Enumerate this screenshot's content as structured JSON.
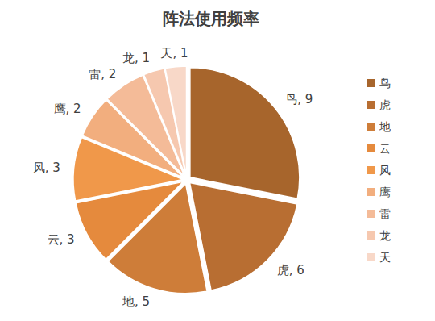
{
  "chart_data": {
    "type": "pie",
    "title": "阵法使用频率",
    "categories": [
      "鸟",
      "虎",
      "地",
      "云",
      "风",
      "鹰",
      "雷",
      "龙",
      "天"
    ],
    "values": [
      9,
      6,
      5,
      3,
      3,
      2,
      2,
      1,
      1
    ],
    "value_labels": [
      "鸟, 9",
      "虎, 6",
      "地, 5",
      "云, 3",
      "风, 3",
      "鹰, 2",
      "雷, 2",
      "龙, 1",
      "天, 1"
    ],
    "colors": [
      "#a7652c",
      "#b86e32",
      "#ce7d39",
      "#e58a3d",
      "#f0984a",
      "#f2ae7e",
      "#f4bb98",
      "#f6c8af",
      "#f8d8c8"
    ],
    "data_labels": true,
    "legend": "right"
  }
}
